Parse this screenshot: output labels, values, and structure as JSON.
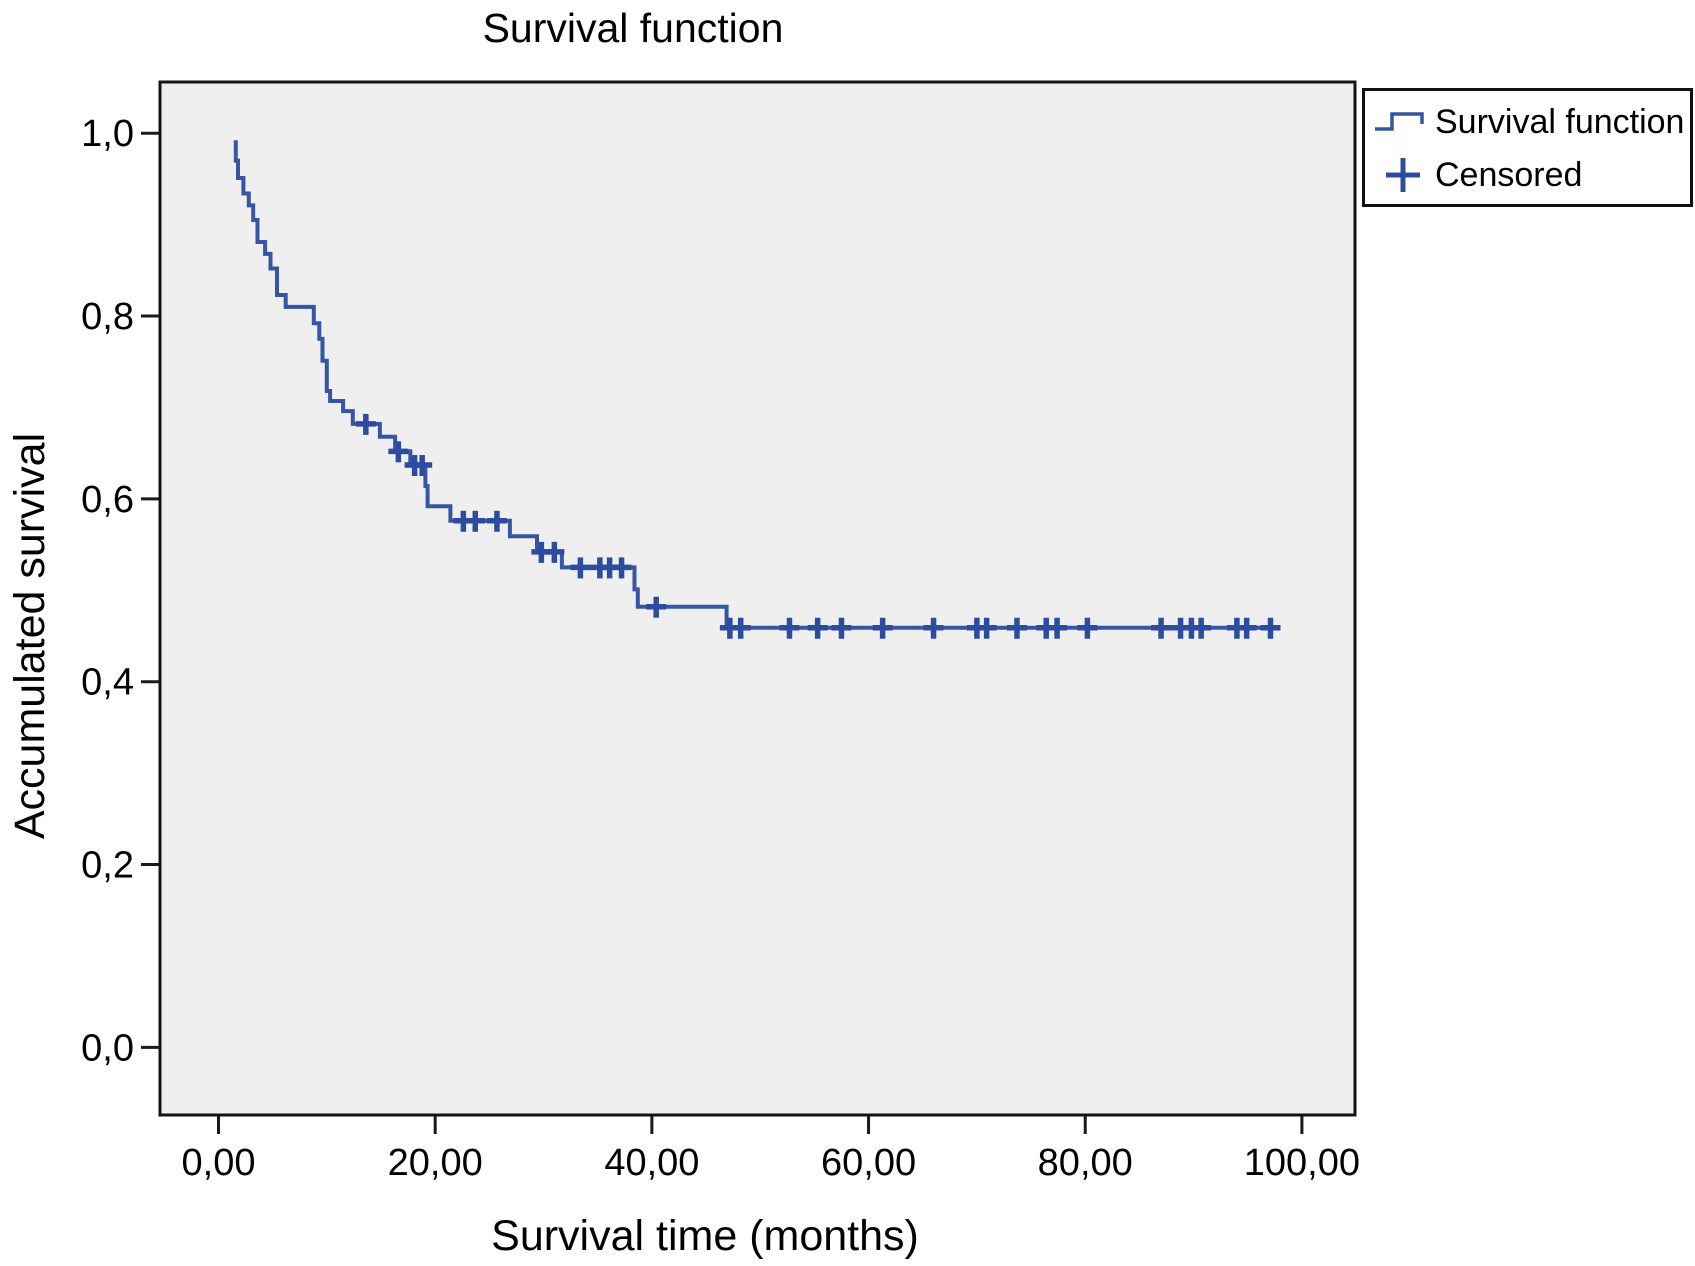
{
  "figure": {
    "background_color": "#ffffff"
  },
  "chart_data": {
    "type": "line",
    "subtype": "kaplan_meier_step",
    "title": "Survival function",
    "xlabel": "Survival time (months)",
    "ylabel": "Accumulated survival",
    "xlim": [
      -5.4,
      104.9
    ],
    "ylim": [
      -0.074,
      1.056
    ],
    "grid": false,
    "plot_background": "#EFEFEF",
    "frame_color": "#141414",
    "tick_color": "#1a1a1a",
    "x_ticks": [
      {
        "value": 0,
        "label": "0,00"
      },
      {
        "value": 20,
        "label": "20,00"
      },
      {
        "value": 40,
        "label": "40,00"
      },
      {
        "value": 60,
        "label": "60,00"
      },
      {
        "value": 80,
        "label": "80,00"
      },
      {
        "value": 100,
        "label": "100,00"
      }
    ],
    "y_ticks": [
      {
        "value": 0.0,
        "label": "0,0"
      },
      {
        "value": 0.2,
        "label": "0,2"
      },
      {
        "value": 0.4,
        "label": "0,4"
      },
      {
        "value": 0.6,
        "label": "0,6"
      },
      {
        "value": 0.8,
        "label": "0,8"
      },
      {
        "value": 1.0,
        "label": "1,0"
      }
    ],
    "legend": {
      "position": "top-right",
      "items": [
        {
          "label": "Survival function",
          "symbol": "step-line"
        },
        {
          "label": "Censored",
          "symbol": "plus"
        }
      ]
    },
    "series": [
      {
        "name": "Survival function",
        "color": "#3656A4",
        "style": "step",
        "points": [
          [
            1.4,
            0.99
          ],
          [
            1.6,
            0.97
          ],
          [
            1.8,
            0.951
          ],
          [
            2.3,
            0.934
          ],
          [
            2.8,
            0.921
          ],
          [
            3.2,
            0.905
          ],
          [
            3.6,
            0.881
          ],
          [
            4.3,
            0.868
          ],
          [
            4.8,
            0.852
          ],
          [
            5.4,
            0.823
          ],
          [
            6.2,
            0.81
          ],
          [
            8.8,
            0.792
          ],
          [
            9.3,
            0.775
          ],
          [
            9.6,
            0.751
          ],
          [
            10.0,
            0.718
          ],
          [
            10.3,
            0.707
          ],
          [
            11.5,
            0.696
          ],
          [
            12.4,
            0.682
          ],
          [
            14.9,
            0.668
          ],
          [
            16.3,
            0.652
          ],
          [
            17.7,
            0.637
          ],
          [
            19.1,
            0.614
          ],
          [
            19.3,
            0.592
          ],
          [
            21.4,
            0.576
          ],
          [
            26.9,
            0.559
          ],
          [
            29.4,
            0.542
          ],
          [
            31.7,
            0.525
          ],
          [
            38.4,
            0.501
          ],
          [
            38.7,
            0.482
          ],
          [
            46.9,
            0.459
          ],
          [
            97.7,
            0.459
          ]
        ]
      }
    ],
    "censored": {
      "name": "Censored",
      "color": "#2B4C9F",
      "points": [
        [
          13.6,
          0.682
        ],
        [
          16.6,
          0.652
        ],
        [
          18.1,
          0.637
        ],
        [
          18.8,
          0.637
        ],
        [
          22.6,
          0.576
        ],
        [
          23.7,
          0.576
        ],
        [
          25.7,
          0.576
        ],
        [
          29.8,
          0.542
        ],
        [
          31.0,
          0.542
        ],
        [
          33.4,
          0.525
        ],
        [
          35.2,
          0.525
        ],
        [
          36.1,
          0.525
        ],
        [
          37.2,
          0.525
        ],
        [
          40.4,
          0.482
        ],
        [
          47.2,
          0.459
        ],
        [
          48.2,
          0.459
        ],
        [
          52.7,
          0.459
        ],
        [
          55.3,
          0.459
        ],
        [
          57.5,
          0.459
        ],
        [
          61.3,
          0.459
        ],
        [
          66.0,
          0.459
        ],
        [
          70.0,
          0.459
        ],
        [
          70.9,
          0.459
        ],
        [
          73.7,
          0.459
        ],
        [
          76.4,
          0.459
        ],
        [
          77.4,
          0.459
        ],
        [
          80.2,
          0.459
        ],
        [
          87.0,
          0.459
        ],
        [
          88.8,
          0.459
        ],
        [
          89.8,
          0.459
        ],
        [
          90.7,
          0.459
        ],
        [
          94.0,
          0.459
        ],
        [
          94.9,
          0.459
        ],
        [
          97.1,
          0.459
        ]
      ]
    }
  }
}
